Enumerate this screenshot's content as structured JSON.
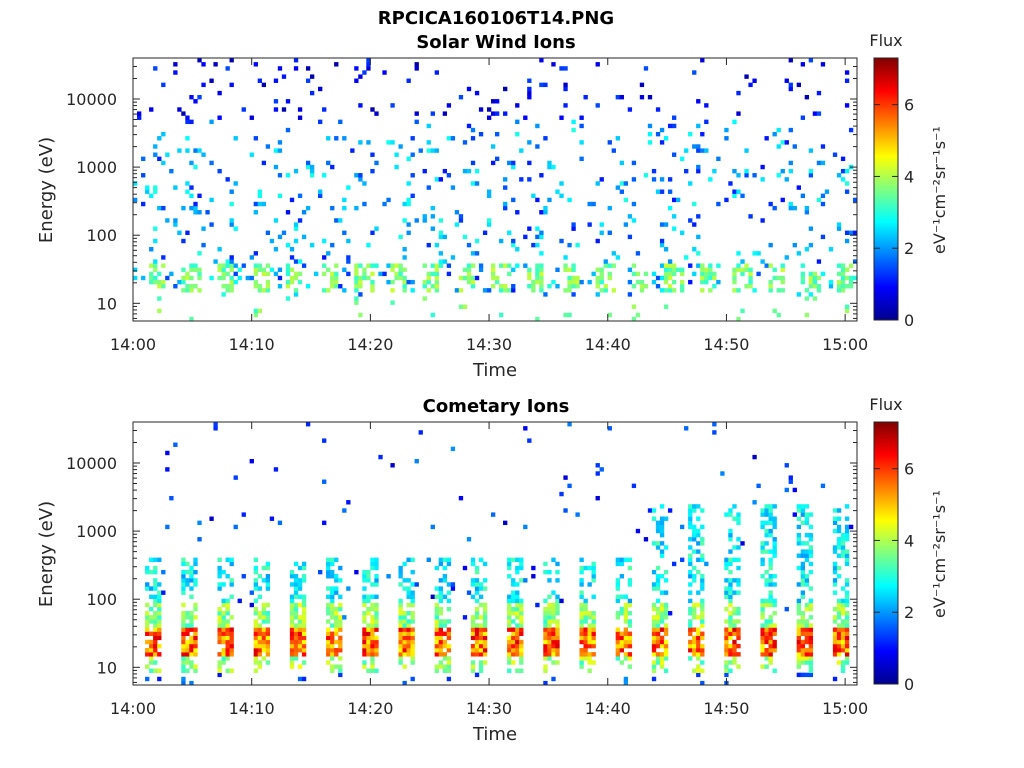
{
  "figure": {
    "title": "RPCICA160106T14.PNG"
  },
  "panels": [
    {
      "title": "Solar Wind Ions",
      "xlabel": "Time",
      "ylabel": "Energy (eV)",
      "colorbar_title": "Flux",
      "colorbar_label": "eV⁻¹cm⁻²sr⁻¹s⁻¹"
    },
    {
      "title": "Cometary Ions",
      "xlabel": "Time",
      "ylabel": "Energy (eV)",
      "colorbar_title": "Flux",
      "colorbar_label": "eV⁻¹cm⁻²sr⁻¹s⁻¹"
    }
  ],
  "chart_data": [
    {
      "type": "heatmap",
      "title": "Solar Wind Ions",
      "xlabel": "Time",
      "ylabel": "Energy (eV)",
      "x_ticks": [
        "14:00",
        "14:10",
        "14:20",
        "14:30",
        "14:40",
        "14:50",
        "15:00"
      ],
      "x_range": [
        "14:00",
        "15:01"
      ],
      "y_scale": "log",
      "y_ticks": [
        10,
        100,
        1000,
        10000
      ],
      "y_tick_labels": [
        "10",
        "100",
        "1000",
        "10000"
      ],
      "y_range": [
        5.5,
        40000
      ],
      "colorbar": {
        "title": "Flux",
        "label": "eV⁻¹cm⁻²sr⁻¹s⁻¹",
        "range": [
          0,
          7.3
        ],
        "ticks": [
          0,
          2,
          4,
          6
        ],
        "colormap": "jet"
      },
      "description_features": {
        "periodic_low_energy_flux": {
          "energy_range_eV": [
            15,
            35
          ],
          "flux_level": [
            3,
            4
          ],
          "period_minutes": 2.9
        },
        "sparse_flux": {
          "energy_range_eV": [
            35,
            40000
          ],
          "flux_level": [
            0.5,
            3
          ]
        }
      }
    },
    {
      "type": "heatmap",
      "title": "Cometary Ions",
      "xlabel": "Time",
      "ylabel": "Energy (eV)",
      "x_ticks": [
        "14:00",
        "14:10",
        "14:20",
        "14:30",
        "14:40",
        "14:50",
        "15:00"
      ],
      "x_range": [
        "14:00",
        "15:01"
      ],
      "y_scale": "log",
      "y_ticks": [
        10,
        100,
        1000,
        10000
      ],
      "y_tick_labels": [
        "10",
        "100",
        "1000",
        "10000"
      ],
      "y_range": [
        5.5,
        40000
      ],
      "colorbar": {
        "title": "Flux",
        "label": "eV⁻¹cm⁻²sr⁻¹s⁻¹",
        "range": [
          0,
          7.3
        ],
        "ticks": [
          0,
          2,
          4,
          6
        ],
        "colormap": "jet"
      },
      "description_features": {
        "periodic_bursts": {
          "count": 20,
          "period_minutes": 3.05,
          "peak_energy_eV": [
            15,
            35
          ],
          "peak_flux": [
            5,
            6.5
          ],
          "tail_energy_eV": [
            100,
            400
          ],
          "tail_flux": [
            2,
            3.5
          ]
        },
        "extended_high_energy_after": "14:42"
      }
    }
  ]
}
